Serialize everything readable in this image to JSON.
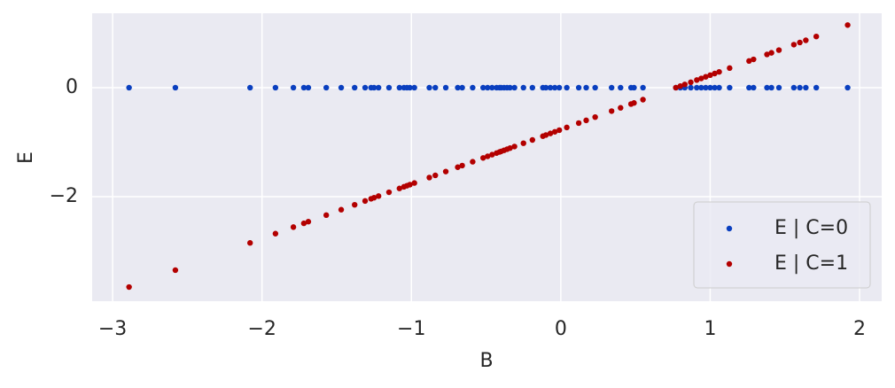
{
  "chart_data": {
    "type": "scatter",
    "x_label": "B",
    "y_label": "E",
    "x": [
      -2.89,
      -2.58,
      -2.08,
      -1.91,
      -1.79,
      -1.72,
      -1.69,
      -1.57,
      -1.47,
      -1.38,
      -1.31,
      -1.27,
      -1.25,
      -1.22,
      -1.15,
      -1.08,
      -1.05,
      -1.03,
      -1.01,
      -0.98,
      -0.88,
      -0.84,
      -0.77,
      -0.69,
      -0.66,
      -0.59,
      -0.52,
      -0.49,
      -0.46,
      -0.43,
      -0.41,
      -0.4,
      -0.38,
      -0.36,
      -0.34,
      -0.31,
      -0.25,
      -0.19,
      -0.12,
      -0.1,
      -0.07,
      -0.04,
      -0.01,
      0.04,
      0.12,
      0.17,
      0.23,
      0.34,
      0.4,
      0.47,
      0.49,
      0.55,
      0.77,
      0.8,
      0.83,
      0.87,
      0.91,
      0.94,
      0.97,
      1.0,
      1.03,
      1.06,
      1.13,
      1.26,
      1.29,
      1.38,
      1.41,
      1.46,
      1.56,
      1.6,
      1.64,
      1.71,
      1.92
    ],
    "series": [
      {
        "name": "E | C=0",
        "color": "#0a3fbf",
        "values": [
          0,
          0,
          0,
          0,
          0,
          0,
          0,
          0,
          0,
          0,
          0,
          0,
          0,
          0,
          0,
          0,
          0,
          0,
          0,
          0,
          0,
          0,
          0,
          0,
          0,
          0,
          0,
          0,
          0,
          0,
          0,
          0,
          0,
          0,
          0,
          0,
          0,
          0,
          0,
          0,
          0,
          0,
          0,
          0,
          0,
          0,
          0,
          0,
          0,
          0,
          0,
          0,
          0,
          0,
          0,
          0,
          0,
          0,
          0,
          0,
          0,
          0,
          0,
          0,
          0,
          0,
          0,
          0,
          0,
          0,
          0,
          0,
          0
        ]
      },
      {
        "name": "E | C=1",
        "color": "#b30000",
        "values": [
          -3.66,
          -3.35,
          -2.85,
          -2.68,
          -2.56,
          -2.49,
          -2.46,
          -2.34,
          -2.24,
          -2.15,
          -2.08,
          -2.04,
          -2.02,
          -1.99,
          -1.92,
          -1.85,
          -1.82,
          -1.8,
          -1.78,
          -1.75,
          -1.65,
          -1.61,
          -1.54,
          -1.46,
          -1.43,
          -1.36,
          -1.29,
          -1.26,
          -1.23,
          -1.2,
          -1.18,
          -1.17,
          -1.15,
          -1.13,
          -1.11,
          -1.08,
          -1.02,
          -0.96,
          -0.89,
          -0.87,
          -0.84,
          -0.81,
          -0.78,
          -0.73,
          -0.65,
          -0.6,
          -0.54,
          -0.43,
          -0.37,
          -0.3,
          -0.28,
          -0.22,
          0,
          0.03,
          0.06,
          0.1,
          0.14,
          0.17,
          0.2,
          0.23,
          0.26,
          0.29,
          0.36,
          0.49,
          0.52,
          0.61,
          0.64,
          0.69,
          0.79,
          0.83,
          0.87,
          0.94,
          1.15
        ]
      }
    ],
    "xlim": [
      -3.137,
      2.148
    ],
    "ylim": [
      -3.92,
      1.366
    ],
    "xticks": [
      {
        "value": -3,
        "label": "−3"
      },
      {
        "value": -2,
        "label": "−2"
      },
      {
        "value": -1,
        "label": "−1"
      },
      0,
      1,
      2
    ],
    "yticks": [
      {
        "value": -2,
        "label": "−2"
      },
      0
    ],
    "grid": true,
    "legend": "lower right"
  }
}
